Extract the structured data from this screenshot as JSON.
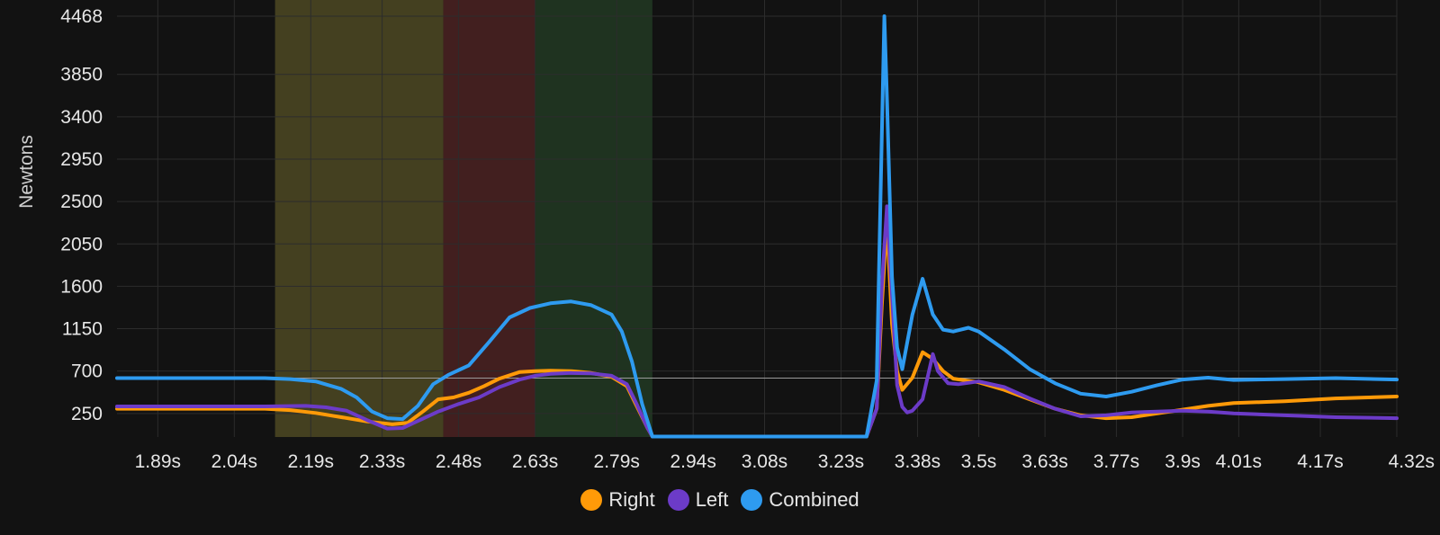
{
  "chart_data": {
    "type": "line",
    "ylabel": "Newtons",
    "xlabel": "",
    "x_unit": "s",
    "xlim": [
      1.81,
      4.32
    ],
    "ylim": [
      0,
      4468
    ],
    "y_ticks": [
      4468,
      3850,
      3400,
      2950,
      2500,
      2050,
      1600,
      1150,
      700,
      250
    ],
    "x_ticks": [
      "1.89s",
      "2.04s",
      "2.19s",
      "2.33s",
      "2.48s",
      "2.63s",
      "2.79s",
      "2.94s",
      "3.08s",
      "3.23s",
      "3.38s",
      "3.5s",
      "3.63s",
      "3.77s",
      "3.9s",
      "4.01s",
      "4.17s",
      "4.32s"
    ],
    "x_tick_values": [
      1.89,
      2.04,
      2.19,
      2.33,
      2.48,
      2.63,
      2.79,
      2.94,
      3.08,
      3.23,
      3.38,
      3.5,
      3.63,
      3.77,
      3.9,
      4.01,
      4.17,
      4.32
    ],
    "grid": true,
    "legend_position": "bottom-center",
    "reference_line": {
      "y": 625,
      "color": "#9a9a9a"
    },
    "bands": [
      {
        "x_start": 2.12,
        "x_end": 2.45,
        "color": "#444020"
      },
      {
        "x_start": 2.45,
        "x_end": 2.63,
        "color": "#421f1f"
      },
      {
        "x_start": 2.63,
        "x_end": 2.86,
        "color": "#1f3320"
      }
    ],
    "series": [
      {
        "name": "Right",
        "color": "#ff9a08",
        "x": [
          1.81,
          1.9,
          2.0,
          2.1,
          2.15,
          2.2,
          2.25,
          2.3,
          2.35,
          2.38,
          2.41,
          2.44,
          2.47,
          2.5,
          2.53,
          2.56,
          2.6,
          2.63,
          2.66,
          2.7,
          2.74,
          2.78,
          2.81,
          2.83,
          2.85,
          2.86,
          2.9,
          3.0,
          3.1,
          3.2,
          3.28,
          3.3,
          3.31,
          3.32,
          3.33,
          3.34,
          3.35,
          3.37,
          3.39,
          3.41,
          3.43,
          3.45,
          3.5,
          3.55,
          3.6,
          3.65,
          3.7,
          3.75,
          3.8,
          3.85,
          3.9,
          3.95,
          4.0,
          4.1,
          4.2,
          4.32
        ],
        "values": [
          300,
          300,
          300,
          300,
          285,
          255,
          210,
          165,
          135,
          150,
          270,
          400,
          420,
          470,
          540,
          620,
          690,
          700,
          705,
          700,
          680,
          640,
          540,
          320,
          100,
          5,
          5,
          5,
          5,
          5,
          5,
          300,
          1400,
          2300,
          1200,
          700,
          500,
          630,
          900,
          830,
          700,
          620,
          580,
          500,
          400,
          300,
          230,
          200,
          210,
          250,
          290,
          330,
          360,
          380,
          410,
          430
        ]
      },
      {
        "name": "Left",
        "color": "#6c3bc8",
        "x": [
          1.81,
          1.9,
          2.0,
          2.1,
          2.18,
          2.22,
          2.26,
          2.3,
          2.34,
          2.37,
          2.4,
          2.44,
          2.48,
          2.52,
          2.56,
          2.6,
          2.63,
          2.66,
          2.7,
          2.74,
          2.78,
          2.81,
          2.83,
          2.85,
          2.86,
          2.9,
          3.0,
          3.1,
          3.2,
          3.28,
          3.3,
          3.31,
          3.32,
          3.33,
          3.34,
          3.35,
          3.36,
          3.37,
          3.39,
          3.41,
          3.42,
          3.44,
          3.46,
          3.5,
          3.55,
          3.6,
          3.65,
          3.7,
          3.75,
          3.8,
          3.85,
          3.9,
          3.95,
          4.0,
          4.1,
          4.2,
          4.32
        ],
        "values": [
          325,
          325,
          325,
          325,
          330,
          315,
          280,
          180,
          90,
          95,
          170,
          270,
          350,
          420,
          530,
          610,
          650,
          670,
          680,
          675,
          650,
          560,
          340,
          100,
          5,
          5,
          5,
          5,
          5,
          5,
          300,
          1600,
          2450,
          1500,
          550,
          320,
          260,
          280,
          400,
          880,
          700,
          570,
          560,
          590,
          530,
          410,
          300,
          220,
          230,
          260,
          270,
          280,
          270,
          250,
          230,
          210,
          200
        ]
      },
      {
        "name": "Combined",
        "color": "#2e9bf0",
        "x": [
          1.81,
          1.9,
          2.0,
          2.1,
          2.15,
          2.2,
          2.25,
          2.28,
          2.31,
          2.34,
          2.37,
          2.4,
          2.43,
          2.46,
          2.5,
          2.54,
          2.58,
          2.62,
          2.66,
          2.7,
          2.74,
          2.78,
          2.8,
          2.82,
          2.84,
          2.86,
          2.9,
          3.0,
          3.1,
          3.2,
          3.28,
          3.3,
          3.31,
          3.315,
          3.32,
          3.33,
          3.34,
          3.35,
          3.37,
          3.39,
          3.41,
          3.43,
          3.45,
          3.48,
          3.5,
          3.55,
          3.6,
          3.65,
          3.7,
          3.75,
          3.8,
          3.85,
          3.9,
          3.95,
          4.0,
          4.1,
          4.2,
          4.32
        ],
        "values": [
          625,
          625,
          625,
          625,
          615,
          590,
          510,
          420,
          270,
          200,
          190,
          330,
          560,
          660,
          760,
          1010,
          1270,
          1370,
          1420,
          1440,
          1400,
          1300,
          1120,
          800,
          350,
          5,
          5,
          5,
          5,
          5,
          5,
          600,
          3200,
          4468,
          3600,
          1700,
          950,
          720,
          1300,
          1680,
          1300,
          1140,
          1120,
          1160,
          1120,
          930,
          720,
          570,
          460,
          430,
          480,
          550,
          610,
          630,
          605,
          615,
          625,
          610
        ]
      }
    ]
  }
}
